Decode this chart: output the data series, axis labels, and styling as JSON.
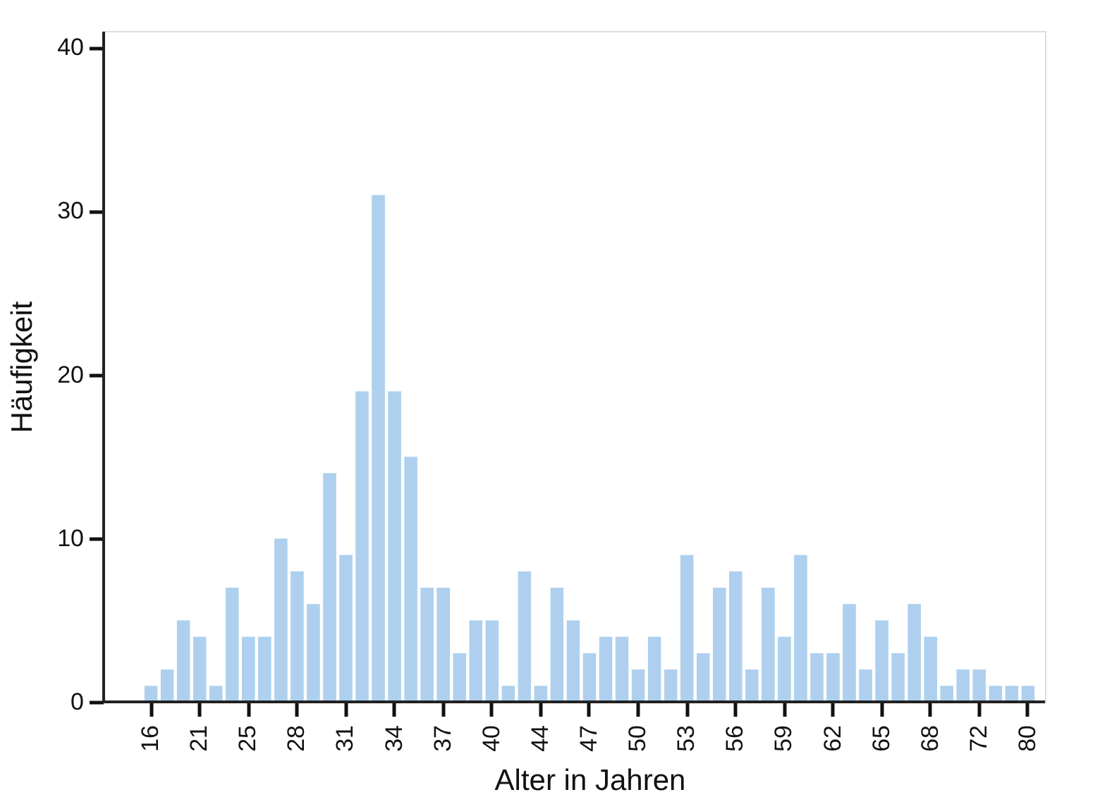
{
  "chart_data": {
    "type": "bar",
    "xlabel": "Alter in Jahren",
    "ylabel": "Häufigkeit",
    "categories": [
      "16",
      null,
      null,
      "21",
      null,
      null,
      "25",
      null,
      null,
      "28",
      null,
      null,
      "31",
      null,
      null,
      "34",
      null,
      null,
      "37",
      null,
      null,
      "40",
      null,
      null,
      "44",
      null,
      null,
      "47",
      null,
      null,
      "50",
      null,
      null,
      "53",
      null,
      null,
      "56",
      null,
      null,
      "59",
      null,
      null,
      "62",
      null,
      null,
      "65",
      null,
      null,
      "68",
      null,
      null,
      "72",
      null,
      null,
      "80"
    ],
    "values": [
      1,
      2,
      5,
      4,
      1,
      7,
      4,
      4,
      10,
      8,
      6,
      14,
      9,
      19,
      31,
      19,
      15,
      7,
      7,
      3,
      5,
      5,
      1,
      8,
      1,
      7,
      5,
      3,
      4,
      4,
      2,
      4,
      2,
      9,
      3,
      7,
      8,
      2,
      7,
      4,
      9,
      3,
      3,
      6,
      2,
      5,
      3,
      6,
      4,
      1,
      2,
      2,
      1,
      1,
      1
    ],
    "color": "#aed0ee",
    "ylim": [
      0,
      41
    ],
    "yticks": [
      0,
      10,
      20,
      30,
      40
    ],
    "grid": false
  }
}
